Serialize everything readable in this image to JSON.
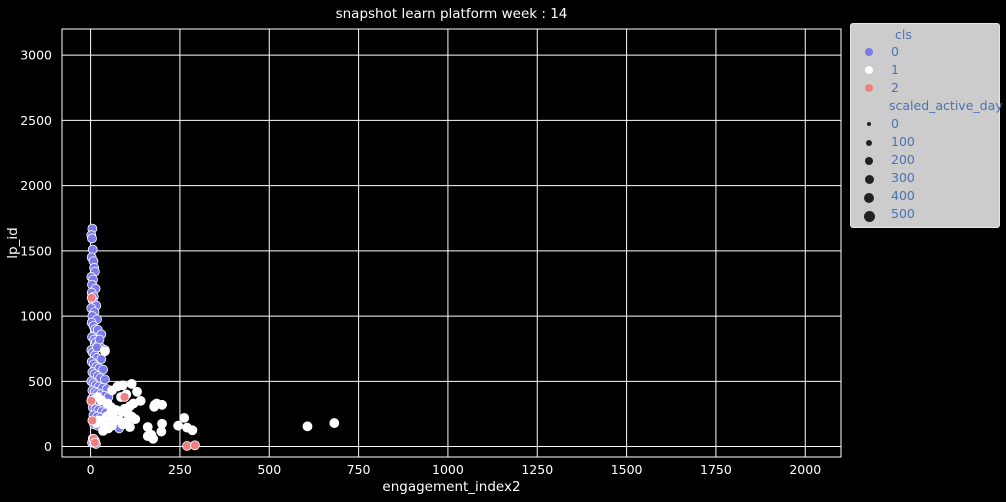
{
  "chart_data": {
    "type": "scatter",
    "title": "snapshot learn platform week : 14",
    "xlabel": "engagement_index2",
    "ylabel": "lp_id",
    "xlim": [
      -80,
      2100
    ],
    "ylim": [
      -80,
      3200
    ],
    "x_ticks": [
      0,
      250,
      500,
      750,
      1000,
      1250,
      1500,
      1750,
      2000
    ],
    "y_ticks": [
      0,
      500,
      1000,
      1500,
      2000,
      2500,
      3000
    ],
    "grid": true,
    "background": "#000000",
    "grid_color": "#ffffff",
    "legend": {
      "placement": "outside-top-right",
      "hue_title": "cls",
      "hue_entries": [
        {
          "label": "0",
          "color": "#7b7bea"
        },
        {
          "label": "1",
          "color": "#ffffff"
        },
        {
          "label": "2",
          "color": "#f08080"
        }
      ],
      "size_title": "scaled_active_day",
      "size_entries": [
        "0",
        "100",
        "200",
        "300",
        "400",
        "500"
      ]
    },
    "series": [
      {
        "name": "0",
        "color": "#7b7bea",
        "points": [
          [
            5,
            1670
          ],
          [
            2,
            1620
          ],
          [
            4,
            1595
          ],
          [
            6,
            1510
          ],
          [
            3,
            1450
          ],
          [
            8,
            1420
          ],
          [
            10,
            1370
          ],
          [
            12,
            1340
          ],
          [
            2,
            1300
          ],
          [
            7,
            1280
          ],
          [
            4,
            1240
          ],
          [
            14,
            1210
          ],
          [
            3,
            1180
          ],
          [
            9,
            1150
          ],
          [
            6,
            1120
          ],
          [
            16,
            1080
          ],
          [
            2,
            1060
          ],
          [
            11,
            1030
          ],
          [
            5,
            1000
          ],
          [
            18,
            975
          ],
          [
            3,
            950
          ],
          [
            8,
            925
          ],
          [
            13,
            900
          ],
          [
            20,
            880
          ],
          [
            25,
            860
          ],
          [
            4,
            840
          ],
          [
            10,
            820
          ],
          [
            15,
            800
          ],
          [
            22,
            780
          ],
          [
            28,
            760
          ],
          [
            2,
            740
          ],
          [
            6,
            720
          ],
          [
            12,
            700
          ],
          [
            18,
            680
          ],
          [
            30,
            670
          ],
          [
            3,
            650
          ],
          [
            9,
            630
          ],
          [
            16,
            610
          ],
          [
            24,
            600
          ],
          [
            35,
            590
          ],
          [
            5,
            570
          ],
          [
            11,
            555
          ],
          [
            20,
            540
          ],
          [
            27,
            525
          ],
          [
            40,
            515
          ],
          [
            2,
            500
          ],
          [
            8,
            485
          ],
          [
            14,
            470
          ],
          [
            23,
            460
          ],
          [
            33,
            450
          ],
          [
            45,
            440
          ],
          [
            5,
            430
          ],
          [
            12,
            420
          ],
          [
            19,
            410
          ],
          [
            28,
            400
          ],
          [
            38,
            390
          ],
          [
            50,
            380
          ],
          [
            4,
            370
          ],
          [
            10,
            360
          ],
          [
            16,
            350
          ],
          [
            26,
            340
          ],
          [
            36,
            330
          ],
          [
            48,
            320
          ],
          [
            6,
            300
          ],
          [
            14,
            290
          ],
          [
            22,
            280
          ],
          [
            32,
            270
          ],
          [
            42,
            260
          ],
          [
            55,
            250
          ],
          [
            8,
            240
          ],
          [
            18,
            230
          ],
          [
            28,
            220
          ],
          [
            40,
            210
          ],
          [
            52,
            200
          ],
          [
            62,
            190
          ],
          [
            75,
            180
          ],
          [
            10,
            170
          ],
          [
            20,
            160
          ],
          [
            35,
            150
          ],
          [
            80,
            140
          ],
          [
            6,
            60
          ],
          [
            12,
            45
          ],
          [
            4,
            30
          ],
          [
            15,
            20
          ],
          [
            8,
            35
          ],
          [
            20,
            895
          ],
          [
            30,
            860
          ],
          [
            25,
            820
          ],
          [
            18,
            760
          ],
          [
            40,
            740
          ]
        ]
      },
      {
        "name": "1",
        "color": "#ffffff",
        "points": [
          [
            40,
            730
          ],
          [
            90,
            470
          ],
          [
            115,
            480
          ],
          [
            130,
            420
          ],
          [
            75,
            460
          ],
          [
            60,
            430
          ],
          [
            100,
            400
          ],
          [
            85,
            380
          ],
          [
            140,
            350
          ],
          [
            120,
            330
          ],
          [
            110,
            310
          ],
          [
            95,
            290
          ],
          [
            70,
            270
          ],
          [
            55,
            250
          ],
          [
            45,
            230
          ],
          [
            65,
            210
          ],
          [
            80,
            200
          ],
          [
            105,
            250
          ],
          [
            115,
            230
          ],
          [
            125,
            210
          ],
          [
            100,
            190
          ],
          [
            90,
            170
          ],
          [
            110,
            150
          ],
          [
            60,
            160
          ],
          [
            50,
            140
          ],
          [
            35,
            120
          ],
          [
            160,
            150
          ],
          [
            170,
            90
          ],
          [
            160,
            80
          ],
          [
            175,
            60
          ],
          [
            180,
            320
          ],
          [
            185,
            330
          ],
          [
            200,
            320
          ],
          [
            178,
            305
          ],
          [
            200,
            175
          ],
          [
            198,
            115
          ],
          [
            245,
            160
          ],
          [
            262,
            220
          ],
          [
            270,
            145
          ],
          [
            285,
            125
          ],
          [
            607,
            155
          ],
          [
            682,
            180
          ],
          [
            20,
            380
          ],
          [
            30,
            355
          ],
          [
            48,
            330
          ],
          [
            58,
            300
          ],
          [
            72,
            280
          ],
          [
            88,
            265
          ],
          [
            25,
            200
          ],
          [
            15,
            180
          ],
          [
            38,
            170
          ],
          [
            45,
            160
          ]
        ]
      },
      {
        "name": "2",
        "color": "#f08080",
        "points": [
          [
            3,
            1140
          ],
          [
            2,
            350
          ],
          [
            5,
            200
          ],
          [
            95,
            380
          ],
          [
            270,
            5
          ],
          [
            292,
            10
          ],
          [
            8,
            60
          ],
          [
            12,
            30
          ]
        ]
      }
    ]
  }
}
